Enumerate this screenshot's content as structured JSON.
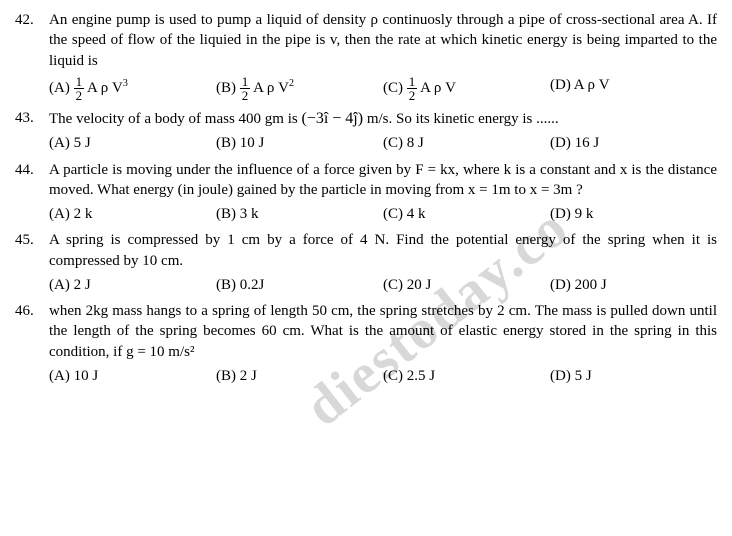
{
  "watermark": "diestoday.co",
  "questions": [
    {
      "num": "42.",
      "text": "An engine pump is used to pump a liquid of density ρ continuosly through a pipe of cross-sectional area A. If the speed of flow of the liquied in the pipe is v, then the rate at which kinetic energy is being imparted to the liquid is",
      "opts": {
        "a_label": "(A)",
        "a_frac_n": "1",
        "a_frac_d": "2",
        "a_rest": " A ρ V",
        "a_sup": "3",
        "b_label": "(B)",
        "b_frac_n": "1",
        "b_frac_d": "2",
        "b_rest": " A ρ V",
        "b_sup": "2",
        "c_label": "(C)",
        "c_frac_n": "1",
        "c_frac_d": "2",
        "c_rest": " A ρ V",
        "c_sup": "",
        "d_label": "(D)",
        "d_rest": " A ρ V",
        "d_sup": ""
      }
    },
    {
      "num": "43.",
      "text_pre": "The velocity of a body of mass 400 gm is ",
      "vec": "(−3î − 4ĵ)",
      "text_post": " m/s. So its kinetic energy is ......",
      "opts": {
        "a": "(A) 5 J",
        "b": "(B) 10 J",
        "c": "(C) 8 J",
        "d": "(D) 16 J"
      }
    },
    {
      "num": "44.",
      "text": "A particle is moving under the influence of a force given by F = kx, where k is a constant and x is the distance moved. What energy (in joule) gained by the particle in moving from x = 1m to x = 3m ?",
      "opts": {
        "a": "(A) 2 k",
        "b": "(B) 3 k",
        "c": "(C) 4 k",
        "d": "(D) 9 k"
      }
    },
    {
      "num": "45.",
      "text": "A spring is compressed by 1 cm by a force of 4 N. Find the potential energy of the spring when it is compressed by 10 cm.",
      "opts": {
        "a": "(A) 2 J",
        "b": "(B) 0.2J",
        "c": "(C) 20 J",
        "d": "(D) 200 J"
      }
    },
    {
      "num": "46.",
      "text": "when 2kg mass hangs to a spring of length 50 cm, the spring stretches by 2 cm. The mass is pulled down until the length of the spring becomes 60 cm. What is the amount of elastic energy stored in the  spring in this condition, if g = 10 m/s²",
      "opts": {
        "a": "(A) 10 J",
        "b": "(B) 2 J",
        "c": "(C) 2.5 J",
        "d": "(D) 5 J"
      }
    }
  ]
}
